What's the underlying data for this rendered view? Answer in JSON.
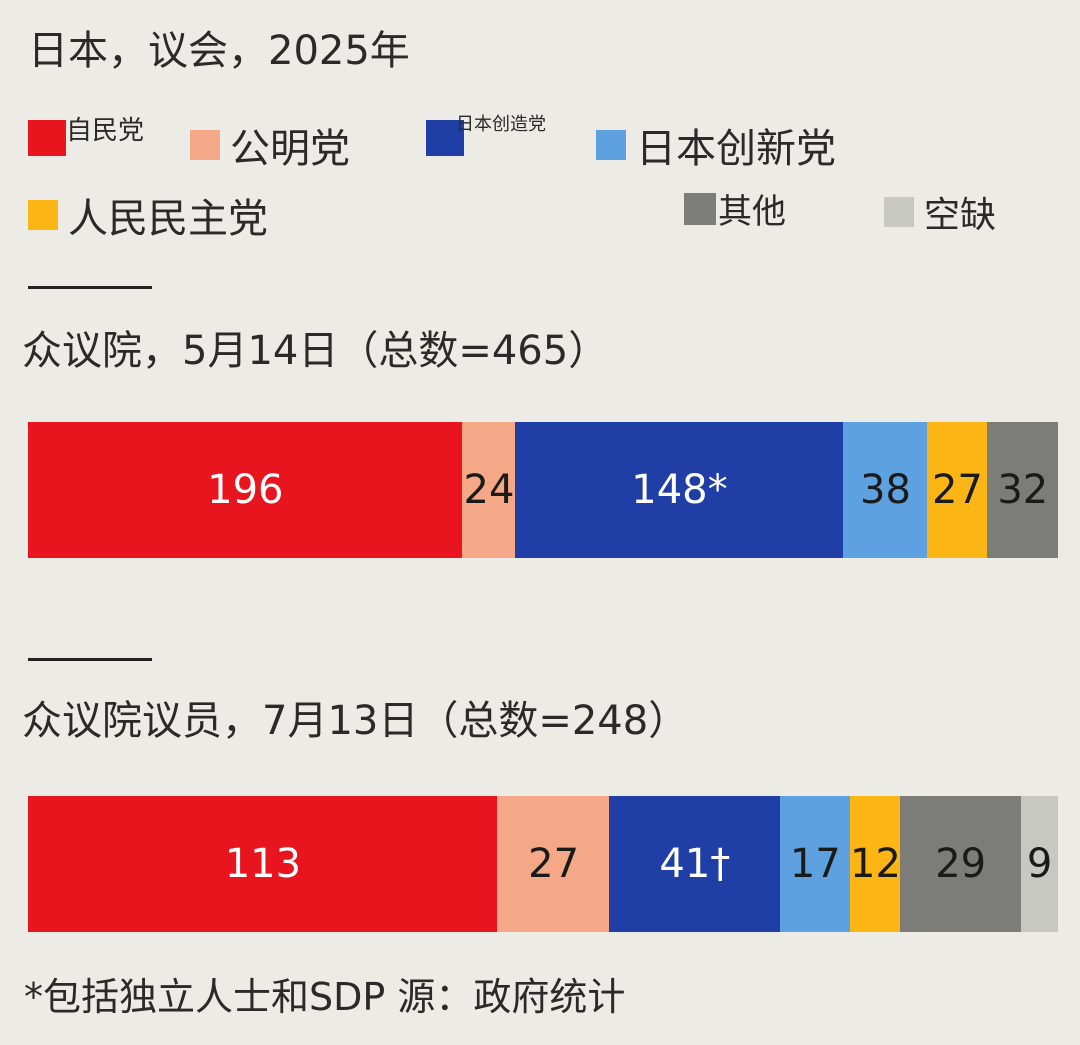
{
  "title": "日本，议会，2025年",
  "legend": [
    {
      "label": "自民党",
      "color": "#e8151f",
      "key": "ldp"
    },
    {
      "label": "公明党",
      "color": "#f4a888",
      "key": "komeito"
    },
    {
      "label": "日本创造党",
      "color": "#1f3fa6",
      "key": "cdp"
    },
    {
      "label": "日本创新党",
      "color": "#5ea1e0",
      "key": "ishin"
    },
    {
      "label": "人民民主党",
      "color": "#fbb515",
      "key": "dpp"
    },
    {
      "label": "其他",
      "color": "#7c7c78",
      "key": "other"
    },
    {
      "label": "空缺",
      "color": "#c8c8c3",
      "key": "vacant"
    }
  ],
  "chart_data": [
    {
      "type": "bar",
      "stacked": "horizontal-100%",
      "title": "众议院，5月14日（总数=465）",
      "total": 465,
      "segments": [
        {
          "name": "自民党",
          "value": 196,
          "label": "196",
          "color": "#e8151f",
          "text_color": "#ffffff"
        },
        {
          "name": "公明党",
          "value": 24,
          "label": "24",
          "color": "#f4a888",
          "text_color": "#1a1a1a"
        },
        {
          "name": "日本创造党",
          "value": 148,
          "label": "148*",
          "color": "#1f3fa6",
          "text_color": "#ffffff"
        },
        {
          "name": "日本创新党",
          "value": 38,
          "label": "38",
          "color": "#5ea1e0",
          "text_color": "#1a1a1a"
        },
        {
          "name": "人民民主党",
          "value": 27,
          "label": "27",
          "color": "#fbb515",
          "text_color": "#1a1a1a"
        },
        {
          "name": "其他",
          "value": 32,
          "label": "32",
          "color": "#7c7c78",
          "text_color": "#1a1a1a"
        }
      ]
    },
    {
      "type": "bar",
      "stacked": "horizontal-100%",
      "title": "众议院议员，7月13日（总数=248）",
      "total": 248,
      "segments": [
        {
          "name": "自民党",
          "value": 113,
          "label": "113",
          "color": "#e8151f",
          "text_color": "#ffffff"
        },
        {
          "name": "公明党",
          "value": 27,
          "label": "27",
          "color": "#f4a888",
          "text_color": "#1a1a1a"
        },
        {
          "name": "日本创造党",
          "value": 41,
          "label": "41†",
          "color": "#1f3fa6",
          "text_color": "#ffffff"
        },
        {
          "name": "日本创新党",
          "value": 17,
          "label": "17",
          "color": "#5ea1e0",
          "text_color": "#1a1a1a"
        },
        {
          "name": "人民民主党",
          "value": 12,
          "label": "12",
          "color": "#fbb515",
          "text_color": "#1a1a1a"
        },
        {
          "name": "其他",
          "value": 29,
          "label": "29",
          "color": "#7c7c78",
          "text_color": "#1a1a1a"
        },
        {
          "name": "空缺",
          "value": 9,
          "label": "9",
          "color": "#c8c8c3",
          "text_color": "#1a1a1a"
        }
      ]
    }
  ],
  "footnote": "*包括独立人士和SDP",
  "source": "源：政府统计"
}
